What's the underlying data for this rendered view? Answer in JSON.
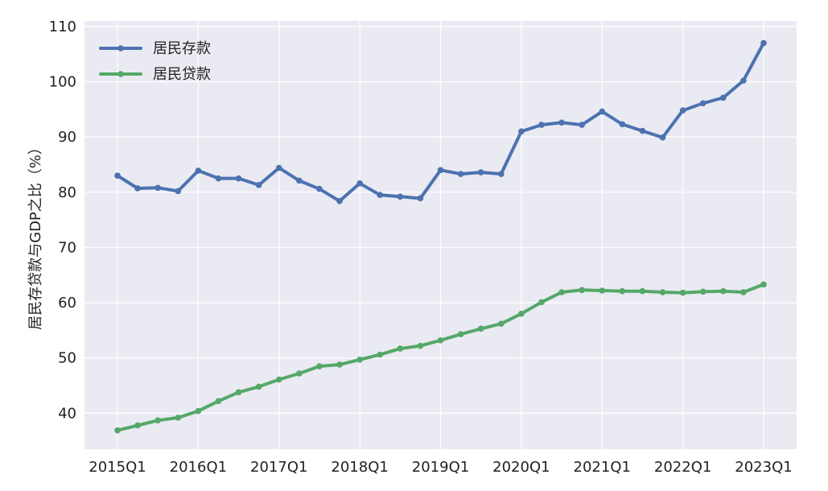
{
  "chart_data": {
    "type": "line",
    "xlabel": "",
    "ylabel": "居民存贷款与GDP之比（%）",
    "ylim": [
      33.5,
      111
    ],
    "yticks": [
      40,
      50,
      60,
      70,
      80,
      90,
      100,
      110
    ],
    "grid": true,
    "legend_position": "top-left",
    "background": "#EAEAF2",
    "x": [
      "2015Q1",
      "2015Q2",
      "2015Q3",
      "2015Q4",
      "2016Q1",
      "2016Q2",
      "2016Q3",
      "2016Q4",
      "2017Q1",
      "2017Q2",
      "2017Q3",
      "2017Q4",
      "2018Q1",
      "2018Q2",
      "2018Q3",
      "2018Q4",
      "2019Q1",
      "2019Q2",
      "2019Q3",
      "2019Q4",
      "2020Q1",
      "2020Q2",
      "2020Q3",
      "2020Q4",
      "2021Q1",
      "2021Q2",
      "2021Q3",
      "2021Q4",
      "2022Q1",
      "2022Q2",
      "2022Q3",
      "2022Q4",
      "2023Q1"
    ],
    "xticks": [
      "2015Q1",
      "2016Q1",
      "2017Q1",
      "2018Q1",
      "2019Q1",
      "2020Q1",
      "2021Q1",
      "2022Q1",
      "2023Q1"
    ],
    "series": [
      {
        "name": "居民存款",
        "color": "#4C72B0",
        "values": [
          83.0,
          80.7,
          80.8,
          80.2,
          83.9,
          82.5,
          82.5,
          81.3,
          84.4,
          82.1,
          80.6,
          78.4,
          81.6,
          79.5,
          79.2,
          78.9,
          84.0,
          83.3,
          83.6,
          83.3,
          91.0,
          92.2,
          92.6,
          92.2,
          94.6,
          92.3,
          91.1,
          89.9,
          94.8,
          96.1,
          97.1,
          100.2,
          107.0
        ]
      },
      {
        "name": "居民贷款",
        "color": "#55A868",
        "values": [
          36.9,
          37.8,
          38.7,
          39.2,
          40.4,
          42.2,
          43.8,
          44.8,
          46.1,
          47.2,
          48.5,
          48.8,
          49.7,
          50.6,
          51.7,
          52.2,
          53.2,
          54.3,
          55.3,
          56.2,
          58.0,
          60.1,
          61.9,
          62.3,
          62.2,
          62.1,
          62.1,
          61.9,
          61.8,
          62.0,
          62.1,
          61.9,
          63.3
        ]
      }
    ]
  }
}
